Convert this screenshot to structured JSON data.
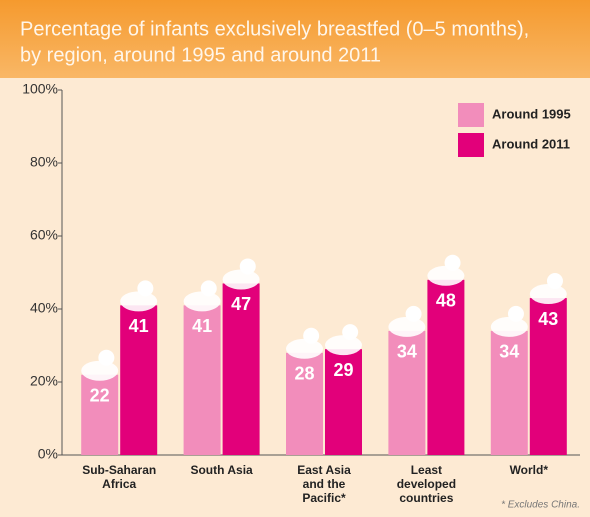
{
  "chart_data": {
    "type": "bar",
    "title": "Percentage of infants exclusively breastfed (0–5 months),",
    "subtitle": "by region, around 1995 and around 2011",
    "categories": [
      "Sub-Saharan Africa",
      "South Asia",
      "East Asia and the Pacific*",
      "Least developed countries",
      "World*"
    ],
    "series": [
      {
        "name": "Around 1995",
        "color": "#f28dbb",
        "values": [
          22,
          41,
          28,
          34,
          34
        ]
      },
      {
        "name": "Around 2011",
        "color": "#e2007a",
        "values": [
          41,
          47,
          29,
          48,
          43
        ]
      }
    ],
    "ylim": [
      0,
      100
    ],
    "yticks": [
      {
        "value": 0,
        "label": "0%"
      },
      {
        "value": 20,
        "label": "20%"
      },
      {
        "value": 40,
        "label": "40%"
      },
      {
        "value": 60,
        "label": "60%"
      },
      {
        "value": 80,
        "label": "80%"
      },
      {
        "value": 100,
        "label": "100%"
      }
    ],
    "legend": "top-right",
    "footnote": "* Excludes China."
  }
}
